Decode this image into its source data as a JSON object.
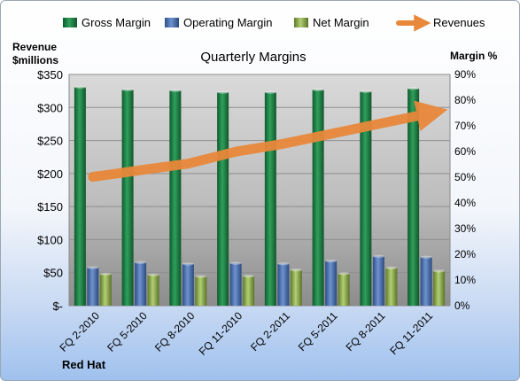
{
  "chart_data": {
    "type": "bar",
    "title": "Quarterly Margins",
    "company": "Red Hat",
    "ylabel_left": [
      "Revenue",
      "$millions"
    ],
    "ylabel_right": "Margin %",
    "categories": [
      "FQ 2-2010",
      "FQ 5-2010",
      "FQ 8-2010",
      "FQ 11-2010",
      "FQ 2-2011",
      "FQ 5-2011",
      "FQ 8-2011",
      "FQ 11-2011"
    ],
    "ylim_left": [
      0,
      350
    ],
    "ylim_right": [
      0,
      90
    ],
    "left_ticks": [
      "$-",
      "$50",
      "$100",
      "$150",
      "$200",
      "$250",
      "$300",
      "$350"
    ],
    "right_ticks": [
      "0%",
      "10%",
      "20%",
      "30%",
      "40%",
      "50%",
      "60%",
      "70%",
      "80%",
      "90%"
    ],
    "series": [
      {
        "name": "Gross Margin",
        "axis": "right",
        "color": "#1f8a4c",
        "values": [
          85,
          84,
          83.7,
          83,
          83,
          84,
          83.3,
          84.5
        ]
      },
      {
        "name": "Operating Margin",
        "axis": "right",
        "color": "#4f74b4",
        "values": [
          14.8,
          16.8,
          16.2,
          16.5,
          16.3,
          17.4,
          19.2,
          18.9
        ]
      },
      {
        "name": "Net Margin",
        "axis": "right",
        "color": "#9bbb59",
        "values": [
          12.3,
          12,
          11.4,
          11.5,
          13.9,
          12.5,
          14.7,
          13.5
        ]
      },
      {
        "name": "Revenues",
        "axis": "left",
        "type": "line",
        "color": "#e8883a",
        "values": [
          195,
          205,
          215,
          233,
          245,
          260,
          275,
          290
        ]
      }
    ],
    "legend_position": "top",
    "grid": true
  }
}
